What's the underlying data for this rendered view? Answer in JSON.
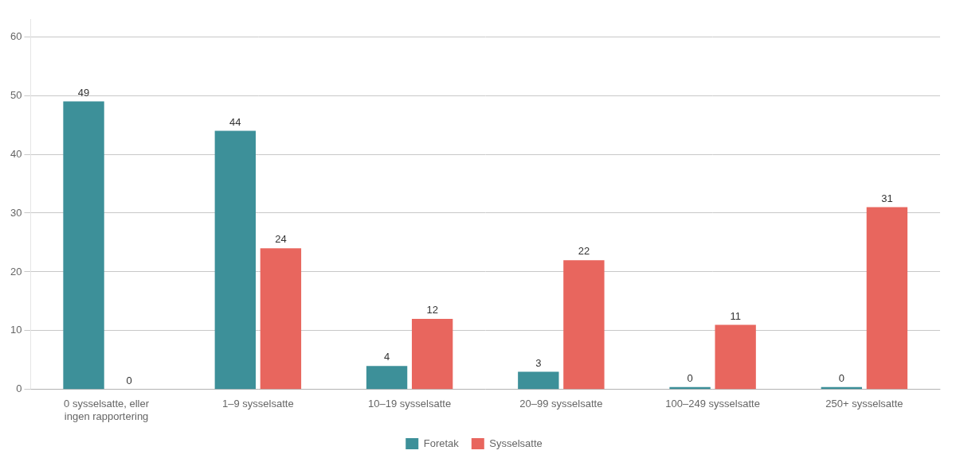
{
  "chart_data": {
    "type": "bar",
    "categories": [
      "0 sysselsatte, eller\ningen rapportering",
      "1–9 sysselsatte",
      "10–19 sysselsatte",
      "20–99 sysselsatte",
      "100–249 sysselsatte",
      "250+ sysselsatte"
    ],
    "series": [
      {
        "name": "Foretak",
        "color": "#3d9099",
        "values": [
          49,
          44,
          4,
          3,
          0.4,
          0.4
        ],
        "value_labels": [
          "49",
          "44",
          "4",
          "3",
          "0",
          "0"
        ]
      },
      {
        "name": "Sysselsatte",
        "color": "#e8665e",
        "values": [
          0,
          24,
          12,
          22,
          11,
          31
        ]
      }
    ],
    "ylim": [
      0,
      63
    ],
    "yticks": [
      0,
      10,
      20,
      30,
      40,
      50,
      60
    ],
    "grid": true,
    "legend": "bottom",
    "data_labels": true
  }
}
